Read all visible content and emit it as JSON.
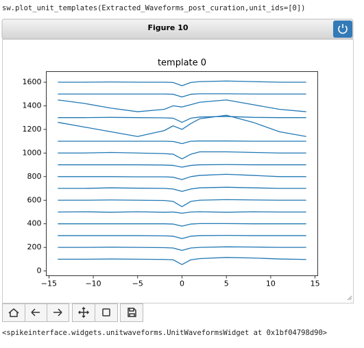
{
  "code": "sw.plot_unit_templates(Extracted_Waveforms_post_curation,unit_ids=[0])",
  "figure": {
    "title": "Figure 10"
  },
  "chart_data": {
    "type": "line",
    "title": "template 0",
    "color": "#1f77b4",
    "x": [
      -14,
      -11,
      -8,
      -5,
      -2,
      -1,
      0,
      1,
      2,
      5,
      8,
      11,
      14
    ],
    "series": [
      {
        "values": [
          100,
          100,
          102,
          100,
          98,
          95,
          55,
          95,
          105,
          115,
          110,
          102,
          98
        ]
      },
      {
        "values": [
          200,
          200,
          202,
          200,
          198,
          195,
          175,
          195,
          200,
          205,
          203,
          200,
          200
        ]
      },
      {
        "values": [
          300,
          300,
          300,
          300,
          298,
          295,
          275,
          295,
          300,
          302,
          300,
          300,
          300
        ]
      },
      {
        "values": [
          400,
          400,
          400,
          400,
          400,
          398,
          380,
          398,
          402,
          402,
          400,
          400,
          400
        ]
      },
      {
        "values": [
          500,
          502,
          498,
          502,
          498,
          500,
          490,
          500,
          502,
          498,
          502,
          500,
          500
        ]
      },
      {
        "values": [
          600,
          600,
          602,
          600,
          598,
          590,
          545,
          590,
          600,
          605,
          602,
          600,
          600
        ]
      },
      {
        "values": [
          700,
          700,
          705,
          702,
          700,
          695,
          675,
          695,
          705,
          710,
          705,
          700,
          700
        ]
      },
      {
        "values": [
          800,
          800,
          800,
          798,
          798,
          795,
          775,
          800,
          810,
          820,
          810,
          800,
          800
        ]
      },
      {
        "values": [
          900,
          900,
          900,
          900,
          898,
          895,
          880,
          895,
          900,
          902,
          900,
          900,
          900
        ]
      },
      {
        "values": [
          1000,
          1000,
          1005,
          1000,
          995,
          990,
          950,
          990,
          1010,
          1010,
          1005,
          1000,
          1000
        ]
      },
      {
        "values": [
          1100,
          1100,
          1100,
          1100,
          1100,
          1098,
          1080,
          1100,
          1102,
          1102,
          1100,
          1100,
          1100
        ]
      },
      {
        "values": [
          1260,
          1220,
          1180,
          1140,
          1190,
          1230,
          1200,
          1250,
          1290,
          1320,
          1260,
          1180,
          1140
        ]
      },
      {
        "values": [
          1300,
          1300,
          1302,
          1300,
          1298,
          1295,
          1260,
          1295,
          1305,
          1310,
          1302,
          1300,
          1300
        ]
      },
      {
        "values": [
          1450,
          1420,
          1380,
          1350,
          1370,
          1400,
          1390,
          1410,
          1430,
          1450,
          1410,
          1370,
          1350
        ]
      },
      {
        "values": [
          1500,
          1500,
          1500,
          1500,
          1500,
          1498,
          1475,
          1498,
          1502,
          1502,
          1500,
          1500,
          1500
        ]
      },
      {
        "values": [
          1600,
          1600,
          1602,
          1600,
          1600,
          1598,
          1570,
          1598,
          1605,
          1610,
          1605,
          1600,
          1600
        ]
      }
    ],
    "xlim": [
      -15.3,
      15.3
    ],
    "ylim": [
      -40,
      1690
    ],
    "xticks": [
      {
        "value": -15,
        "label": "−15"
      },
      {
        "value": -10,
        "label": "−10"
      },
      {
        "value": -5,
        "label": "−5"
      },
      0,
      5,
      10,
      15
    ],
    "yticks": [
      0,
      200,
      400,
      600,
      800,
      1000,
      1200,
      1400,
      1600
    ]
  },
  "output": "<spikeinterface.widgets.unitwaveforms.UnitWaveformsWidget at 0x1bf04798d90>"
}
